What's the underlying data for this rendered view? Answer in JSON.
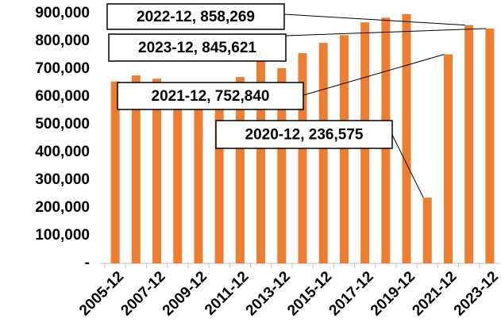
{
  "chart_data": {
    "type": "bar",
    "categories": [
      "2005-12",
      null,
      "2007-12",
      null,
      "2009-12",
      null,
      "2011-12",
      null,
      "2013-12",
      null,
      "2015-12",
      null,
      "2017-12",
      null,
      "2019-12",
      null,
      "2021-12",
      null,
      "2023-12"
    ],
    "values": [
      655000,
      677000,
      665000,
      640000,
      610000,
      600000,
      671000,
      730000,
      703000,
      757000,
      794000,
      822000,
      868000,
      885000,
      898000,
      236575,
      752840,
      858269,
      845621
    ],
    "color": "#ed7d31",
    "ylim": [
      0,
      900000
    ],
    "yticks": [
      {
        "value": 0,
        "label": "-"
      },
      {
        "value": 100000,
        "label": "100,000"
      },
      {
        "value": 200000,
        "label": "200,000"
      },
      {
        "value": 300000,
        "label": "300,000"
      },
      {
        "value": 400000,
        "label": "400,000"
      },
      {
        "value": 500000,
        "label": "500,000"
      },
      {
        "value": 600000,
        "label": "600,000"
      },
      {
        "value": 700000,
        "label": "700,000"
      },
      {
        "value": 800000,
        "label": "800,000"
      },
      {
        "value": 900000,
        "label": "900,000"
      }
    ],
    "annotations": [
      "2022-12, 858,269",
      "2023-12, 845,621",
      "2021-12, 752,840",
      "2020-12, 236,575"
    ]
  }
}
